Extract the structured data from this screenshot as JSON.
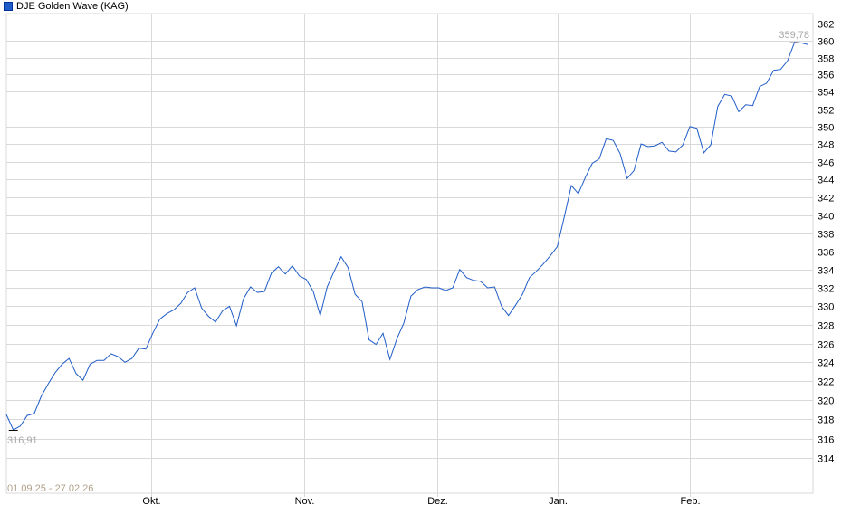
{
  "chart_data": {
    "type": "line",
    "title": "",
    "legend": {
      "position": "top-left",
      "entries": [
        "DJE Golden Wave (KAG)"
      ]
    },
    "series": [
      {
        "name": "DJE Golden Wave (KAG)",
        "color": "#1f5cc8",
        "values": [
          318.5,
          316.91,
          317.3,
          318.4,
          318.6,
          320.4,
          321.7,
          322.9,
          323.8,
          324.4,
          322.8,
          322.1,
          323.8,
          324.2,
          324.2,
          324.9,
          324.6,
          324.0,
          324.4,
          325.5,
          325.4,
          327.1,
          328.6,
          329.2,
          329.6,
          330.3,
          331.5,
          332.0,
          329.8,
          328.9,
          328.3,
          329.5,
          330.0,
          327.9,
          330.8,
          332.1,
          331.5,
          331.6,
          333.6,
          334.3,
          333.5,
          334.4,
          333.3,
          332.9,
          331.6,
          329.0,
          332.1,
          333.8,
          335.4,
          334.2,
          331.3,
          330.5,
          326.4,
          325.9,
          327.1,
          324.3,
          326.5,
          328.2,
          331.1,
          331.8,
          332.1,
          332.0,
          332.0,
          331.7,
          332.0,
          334.0,
          333.1,
          332.8,
          332.7,
          332.0,
          332.1,
          330.0,
          329.0,
          330.1,
          331.3,
          333.1,
          333.8,
          334.6,
          335.5,
          336.5,
          339.8,
          343.3,
          342.4,
          344.2,
          345.8,
          346.3,
          348.6,
          348.4,
          346.9,
          344.1,
          345.0,
          348.0,
          347.7,
          347.8,
          348.2,
          347.2,
          347.1,
          347.9,
          350.0,
          349.8,
          347.0,
          347.9,
          352.3,
          353.7,
          353.5,
          351.7,
          352.5,
          352.4,
          354.6,
          355.0,
          356.5,
          356.6,
          357.6,
          359.78,
          359.7,
          359.5
        ]
      }
    ],
    "x_tick_labels": [
      "Okt.",
      "Nov.",
      "Dez.",
      "Jan.",
      "Feb."
    ],
    "y_ticks": [
      314,
      316,
      318,
      320,
      322,
      324,
      326,
      328,
      330,
      332,
      334,
      336,
      338,
      340,
      342,
      344,
      346,
      348,
      350,
      352,
      354,
      356,
      358,
      360,
      362
    ],
    "ylim": [
      312.5,
      363
    ],
    "y_scale": "log",
    "y_axis_side": "right",
    "grid": true,
    "date_range_label": "01.09.25 - 27.02.26",
    "min_label": "316,91",
    "max_label": "359,78",
    "colors": {
      "line": "#1f5cc8",
      "grid": "#d9d9d9",
      "range_label": "#b0a08a",
      "minmax_label": "#a8a8a8"
    }
  }
}
